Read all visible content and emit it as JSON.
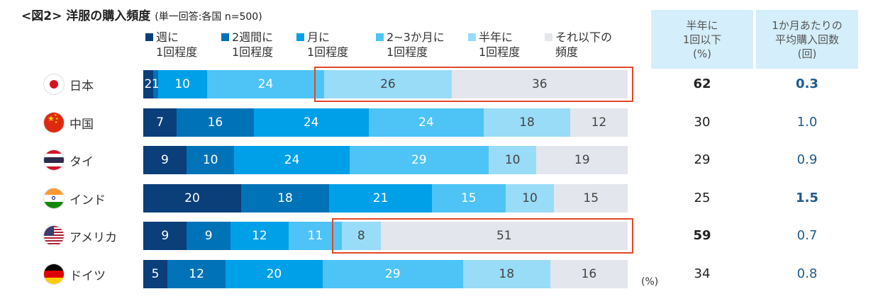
{
  "title": {
    "main": "<図2> 洋服の購入頻度",
    "sub": "(単一回答:各国 n=500)"
  },
  "chart_data": {
    "type": "bar",
    "orientation": "horizontal-stacked-100",
    "unit_label": "(%)",
    "categories": [
      "日本",
      "中国",
      "タイ",
      "インド",
      "アメリカ",
      "ドイツ"
    ],
    "series": [
      {
        "name": "週に\n1回程度",
        "line1": "週に",
        "line2": "1回程度",
        "color": "#0b3f7a",
        "values": [
          2,
          7,
          9,
          20,
          9,
          5
        ],
        "labels": [
          "2",
          "7",
          "9",
          "20",
          "9",
          "5"
        ]
      },
      {
        "name": "2週間に\n1回程度",
        "line1": "2週間に",
        "line2": "1回程度",
        "color": "#0072b8",
        "values": [
          1,
          16,
          10,
          18,
          9,
          12
        ],
        "labels": [
          "1",
          "16",
          "10",
          "18",
          "9",
          "12"
        ]
      },
      {
        "name": "月に\n1回程度",
        "line1": "月に",
        "line2": "1回程度",
        "color": "#00a0e9",
        "values": [
          10,
          24,
          24,
          21,
          12,
          20
        ],
        "labels": [
          "10",
          "24",
          "24",
          "21",
          "12",
          "20"
        ]
      },
      {
        "name": "2~3か月に\n1回程度",
        "line1": "2~3か月に",
        "line2": "1回程度",
        "color": "#4dc4f5",
        "values": [
          24,
          24,
          29,
          15,
          11,
          29
        ],
        "labels": [
          "24",
          "24",
          "29",
          "15",
          "11",
          "29"
        ]
      },
      {
        "name": "半年に\n1回程度",
        "line1": "半年に",
        "line2": "1回程度",
        "color": "#99dcf8",
        "values": [
          26,
          18,
          10,
          10,
          8,
          18
        ],
        "labels": [
          "26",
          "18",
          "10",
          "10",
          "8",
          "18"
        ]
      },
      {
        "name": "それ以下の\n頻度",
        "line1": "それ以下の",
        "line2": "頻度",
        "color": "#e3e6ec",
        "values": [
          36,
          12,
          19,
          15,
          51,
          16
        ],
        "labels": [
          "36",
          "12",
          "19",
          "15",
          "51",
          "16"
        ]
      }
    ],
    "label_text_colors": [
      "#ffffff",
      "#ffffff",
      "#ffffff",
      "#ffffff",
      "#444444",
      "#444444"
    ],
    "highlighted_rows": [
      0,
      4
    ],
    "highlight_color": "#e0492a"
  },
  "table": {
    "col1_header": [
      "半年に",
      "1回以下",
      "(%)"
    ],
    "col2_header": [
      "1か月あたりの",
      "平均購入回数",
      "(回)"
    ],
    "col1_values": [
      "62",
      "30",
      "29",
      "25",
      "59",
      "34"
    ],
    "col2_values": [
      "0.3",
      "1.0",
      "0.9",
      "1.5",
      "0.7",
      "0.8"
    ],
    "col1_bold": [
      true,
      false,
      false,
      false,
      true,
      false
    ],
    "col2_bold": [
      true,
      false,
      false,
      true,
      false,
      false
    ]
  },
  "flags": [
    "japan-flag-icon",
    "china-flag-icon",
    "thailand-flag-icon",
    "india-flag-icon",
    "usa-flag-icon",
    "germany-flag-icon"
  ]
}
